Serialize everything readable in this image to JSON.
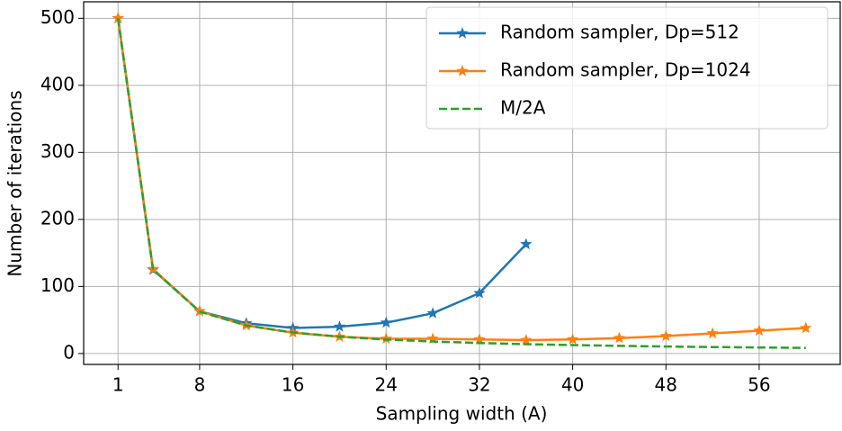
{
  "chart_data": {
    "type": "line",
    "xlabel": "Sampling width (A)",
    "ylabel": "Number of iterations",
    "xlim": [
      -1.95,
      62.95
    ],
    "ylim": [
      -16.3,
      524.6
    ],
    "xticks": [
      1,
      8,
      16,
      24,
      32,
      40,
      48,
      56
    ],
    "yticks": [
      0,
      100,
      200,
      300,
      400,
      500
    ],
    "grid": true,
    "legend": "upper right",
    "series": [
      {
        "name": "Random sampler, Dp=512",
        "color": "#1f77b4",
        "style": "solid",
        "marker": "star",
        "x": [
          1,
          4,
          8,
          12,
          16,
          20,
          24,
          28,
          32,
          36
        ],
        "values": [
          500,
          125,
          63,
          45,
          38,
          40,
          46,
          60,
          90,
          163
        ]
      },
      {
        "name": "Random sampler, Dp=1024",
        "color": "#ff7f0e",
        "style": "solid",
        "marker": "star",
        "x": [
          1,
          4,
          8,
          12,
          16,
          20,
          24,
          28,
          32,
          36,
          40,
          44,
          48,
          52,
          56,
          60
        ],
        "values": [
          500,
          126,
          63,
          42,
          31,
          25,
          22,
          22,
          21,
          20,
          21,
          23,
          26,
          30,
          34,
          38
        ]
      },
      {
        "name": "M/2A",
        "color": "#2ca02c",
        "style": "dashed",
        "marker": "none",
        "x": [
          1,
          4,
          8,
          12,
          16,
          20,
          24,
          28,
          32,
          36,
          40,
          44,
          48,
          52,
          56,
          60
        ],
        "values": [
          500,
          125,
          62.5,
          41.7,
          31.3,
          25,
          20.8,
          17.9,
          15.6,
          13.9,
          12.5,
          11.4,
          10.4,
          9.6,
          8.9,
          8.3
        ]
      }
    ]
  }
}
